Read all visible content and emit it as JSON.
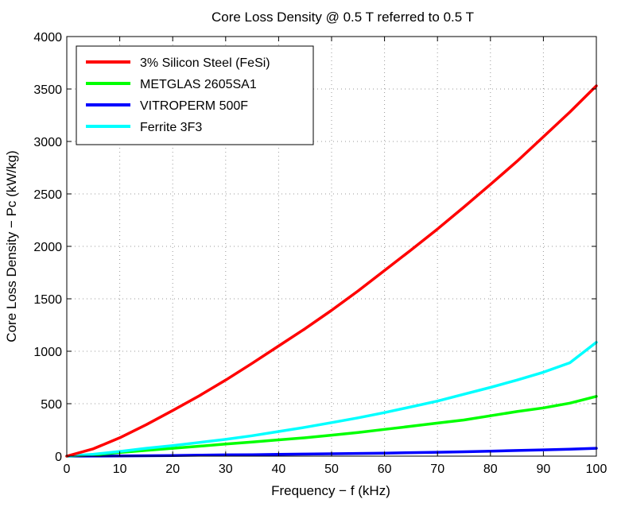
{
  "chart_data": {
    "type": "line",
    "title": "Core Loss Density @ 0.5 T referred to 0.5 T",
    "xlabel": "Frequency − f (kHz)",
    "ylabel": "Core Loss Density − Pc (kW/kg)",
    "xlim": [
      0,
      100
    ],
    "ylim": [
      0,
      4000
    ],
    "xticks": [
      0,
      10,
      20,
      30,
      40,
      50,
      60,
      70,
      80,
      90,
      100
    ],
    "yticks": [
      0,
      500,
      1000,
      1500,
      2000,
      2500,
      3000,
      3500,
      4000
    ],
    "grid": true,
    "legend_position": "top-left",
    "x": [
      0,
      5,
      10,
      15,
      20,
      25,
      30,
      35,
      40,
      45,
      50,
      55,
      60,
      65,
      70,
      75,
      80,
      85,
      90,
      95,
      100
    ],
    "series": [
      {
        "name": "3% Silicon Steel (FeSi)",
        "color": "#ff0000",
        "values": [
          0,
          70,
          175,
          300,
          435,
          575,
          725,
          885,
          1050,
          1215,
          1390,
          1575,
          1770,
          1965,
          2165,
          2375,
          2590,
          2810,
          3045,
          3280,
          3530
        ]
      },
      {
        "name": "METGLAS 2605SA1",
        "color": "#00ff00",
        "values": [
          0,
          12,
          35,
          55,
          75,
          95,
          115,
          135,
          155,
          175,
          200,
          225,
          255,
          285,
          315,
          345,
          385,
          425,
          460,
          505,
          570
        ]
      },
      {
        "name": "VITROPERM 500F",
        "color": "#0000ff",
        "values": [
          0,
          1,
          2,
          4,
          6,
          9,
          12,
          14,
          17,
          20,
          23,
          26,
          29,
          33,
          37,
          42,
          48,
          54,
          60,
          67,
          75
        ]
      },
      {
        "name": "Ferrite 3F3",
        "color": "#00ffff",
        "values": [
          0,
          18,
          45,
          75,
          100,
          130,
          160,
          195,
          235,
          275,
          320,
          365,
          415,
          470,
          525,
          590,
          655,
          725,
          800,
          890,
          1085
        ]
      }
    ]
  }
}
